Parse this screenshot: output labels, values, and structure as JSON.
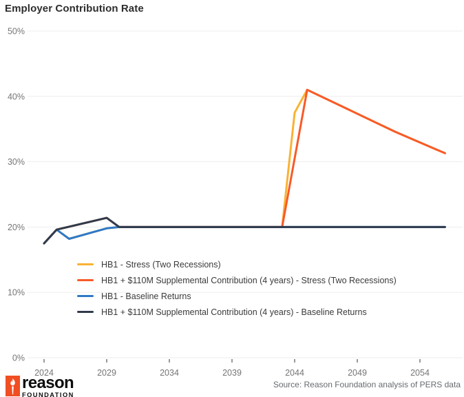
{
  "chart_data": {
    "type": "line",
    "title": "Employer Contribution Rate",
    "x_axis": {
      "tick_labels": [
        "2024",
        "2029",
        "2034",
        "2039",
        "2044",
        "2049",
        "2054"
      ],
      "range": [
        2024,
        2056
      ]
    },
    "y_axis": {
      "tick_labels": [
        "0%",
        "10%",
        "20%",
        "30%",
        "40%",
        "50%"
      ],
      "range": [
        0,
        50
      ],
      "unit": "%"
    },
    "grid": "horizontal-only",
    "legend_position": "inside-lower-left",
    "series": [
      {
        "name": "HB1 - Stress (Two Recessions)",
        "color": "#F9B234",
        "points": [
          [
            2024,
            17.5
          ],
          [
            2025,
            19.6
          ],
          [
            2026,
            18.2
          ],
          [
            2029,
            19.8
          ],
          [
            2030,
            20
          ],
          [
            2043,
            20
          ],
          [
            2044,
            37.5
          ],
          [
            2045,
            41
          ],
          [
            2052,
            34.6
          ],
          [
            2056,
            31.3
          ]
        ]
      },
      {
        "name": "HB1 + $110M Supplemental Contribution (4 years) - Stress (Two Recessions)",
        "color": "#F85A28",
        "points": [
          [
            2024,
            17.5
          ],
          [
            2025,
            19.6
          ],
          [
            2029,
            21.4
          ],
          [
            2030,
            20
          ],
          [
            2043,
            20
          ],
          [
            2045,
            41
          ],
          [
            2052,
            34.6
          ],
          [
            2056,
            31.3
          ]
        ]
      },
      {
        "name": "HB1 - Baseline Returns",
        "color": "#2E79C8",
        "points": [
          [
            2024,
            17.5
          ],
          [
            2025,
            19.6
          ],
          [
            2026,
            18.2
          ],
          [
            2029,
            19.8
          ],
          [
            2030,
            20
          ],
          [
            2056,
            20
          ]
        ]
      },
      {
        "name": "HB1 + $110M Supplemental Contribution (4 years) - Baseline Returns",
        "color": "#2F3B4C",
        "points": [
          [
            2024,
            17.5
          ],
          [
            2025,
            19.6
          ],
          [
            2029,
            21.4
          ],
          [
            2030,
            20
          ],
          [
            2056,
            20
          ]
        ]
      }
    ]
  },
  "footer": {
    "source": "Source: Reason Foundation analysis of PERS data",
    "logo": {
      "brand": "reason",
      "sub": "FOUNDATION",
      "icon": "torch-icon",
      "color": "#F04E23"
    }
  }
}
